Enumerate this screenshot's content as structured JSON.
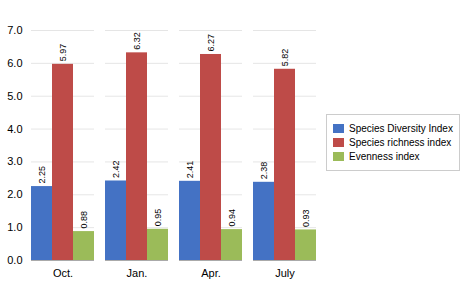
{
  "chart_data": {
    "type": "bar",
    "categories": [
      "Oct.",
      "Jan.",
      "Apr.",
      "July"
    ],
    "series": [
      {
        "name": "Species Diversity Index",
        "color": "#4472C4",
        "values": [
          2.25,
          2.42,
          2.41,
          2.38
        ]
      },
      {
        "name": "Species richness index",
        "color": "#BE4B48",
        "values": [
          5.97,
          6.32,
          6.27,
          5.82
        ]
      },
      {
        "name": "Evenness index",
        "color": "#9BBB59",
        "values": [
          0.88,
          0.95,
          0.94,
          0.93
        ]
      }
    ],
    "ylim": [
      0,
      7
    ],
    "yticks": [
      0,
      1,
      2,
      3,
      4,
      5,
      6,
      7
    ],
    "grid": true,
    "legend": "right",
    "data_labels": true
  }
}
